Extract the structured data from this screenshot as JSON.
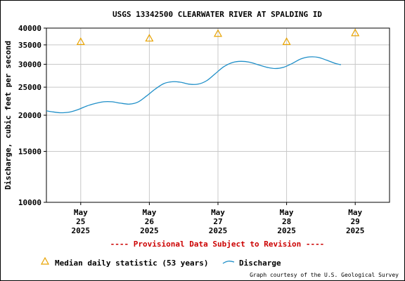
{
  "chart_data": {
    "type": "line",
    "title": "USGS 13342500 CLEARWATER RIVER AT SPALDING ID",
    "ylabel": "Discharge, cubic feet per second",
    "yscale": "log",
    "ylim": [
      10000,
      40000
    ],
    "yticks": [
      {
        "value": 10000,
        "label": "10000"
      },
      {
        "value": 15000,
        "label": "15000"
      },
      {
        "value": 20000,
        "label": "20000"
      },
      {
        "value": 25000,
        "label": "25000"
      },
      {
        "value": 30000,
        "label": "30000"
      },
      {
        "value": 35000,
        "label": "35000"
      },
      {
        "value": 40000,
        "label": "40000"
      }
    ],
    "xlim": [
      "2025-05-24 12:00",
      "2025-05-29 12:00"
    ],
    "xticks": [
      {
        "x": "2025-05-25 00:00",
        "month": "May",
        "day": "25",
        "year": "2025"
      },
      {
        "x": "2025-05-26 00:00",
        "month": "May",
        "day": "26",
        "year": "2025"
      },
      {
        "x": "2025-05-27 00:00",
        "month": "May",
        "day": "27",
        "year": "2025"
      },
      {
        "x": "2025-05-28 00:00",
        "month": "May",
        "day": "28",
        "year": "2025"
      },
      {
        "x": "2025-05-29 00:00",
        "month": "May",
        "day": "29",
        "year": "2025"
      }
    ],
    "grid": true,
    "series": [
      {
        "name": "Discharge",
        "color": "#1f8fc8",
        "points": [
          {
            "x": "2025-05-24 12:00",
            "y": 20700
          },
          {
            "x": "2025-05-24 14:00",
            "y": 20550
          },
          {
            "x": "2025-05-24 17:00",
            "y": 20400
          },
          {
            "x": "2025-05-24 20:00",
            "y": 20500
          },
          {
            "x": "2025-05-24 23:00",
            "y": 20900
          },
          {
            "x": "2025-05-25 02:00",
            "y": 21500
          },
          {
            "x": "2025-05-25 05:00",
            "y": 21950
          },
          {
            "x": "2025-05-25 08:00",
            "y": 22250
          },
          {
            "x": "2025-05-25 11:00",
            "y": 22250
          },
          {
            "x": "2025-05-25 14:00",
            "y": 22000
          },
          {
            "x": "2025-05-25 17:00",
            "y": 21850
          },
          {
            "x": "2025-05-25 20:00",
            "y": 22200
          },
          {
            "x": "2025-05-25 23:00",
            "y": 23300
          },
          {
            "x": "2025-05-26 02:00",
            "y": 24600
          },
          {
            "x": "2025-05-26 05:00",
            "y": 25700
          },
          {
            "x": "2025-05-26 08:00",
            "y": 26100
          },
          {
            "x": "2025-05-26 11:00",
            "y": 26000
          },
          {
            "x": "2025-05-26 14:00",
            "y": 25600
          },
          {
            "x": "2025-05-26 17:00",
            "y": 25600
          },
          {
            "x": "2025-05-26 20:00",
            "y": 26300
          },
          {
            "x": "2025-05-26 23:00",
            "y": 27800
          },
          {
            "x": "2025-05-27 02:00",
            "y": 29400
          },
          {
            "x": "2025-05-27 05:00",
            "y": 30400
          },
          {
            "x": "2025-05-27 08:00",
            "y": 30700
          },
          {
            "x": "2025-05-27 11:00",
            "y": 30500
          },
          {
            "x": "2025-05-27 14:00",
            "y": 29900
          },
          {
            "x": "2025-05-27 17:00",
            "y": 29300
          },
          {
            "x": "2025-05-27 20:00",
            "y": 29000
          },
          {
            "x": "2025-05-27 23:00",
            "y": 29300
          },
          {
            "x": "2025-05-28 02:00",
            "y": 30200
          },
          {
            "x": "2025-05-28 05:00",
            "y": 31300
          },
          {
            "x": "2025-05-28 08:00",
            "y": 31800
          },
          {
            "x": "2025-05-28 11:00",
            "y": 31700
          },
          {
            "x": "2025-05-28 14:00",
            "y": 31000
          },
          {
            "x": "2025-05-28 17:00",
            "y": 30200
          },
          {
            "x": "2025-05-28 19:00",
            "y": 29900
          }
        ]
      },
      {
        "name": "Median daily statistic (53 years)",
        "color": "#e8a200",
        "marker": "triangle",
        "points": [
          {
            "x": "2025-05-25 00:00",
            "y": 35900
          },
          {
            "x": "2025-05-26 00:00",
            "y": 36900
          },
          {
            "x": "2025-05-27 00:00",
            "y": 38300
          },
          {
            "x": "2025-05-28 00:00",
            "y": 35900
          },
          {
            "x": "2025-05-29 00:00",
            "y": 38500
          }
        ]
      }
    ],
    "provisional_note": "---- Provisional Data Subject to Revision ----",
    "legend": [
      {
        "label": "Median daily statistic (53 years)",
        "symbol": "triangle",
        "color": "#e8a200"
      },
      {
        "label": "Discharge",
        "symbol": "line",
        "color": "#1f8fc8"
      }
    ],
    "legend_position": "bottom",
    "credit": "Graph courtesy of the U.S. Geological Survey"
  }
}
